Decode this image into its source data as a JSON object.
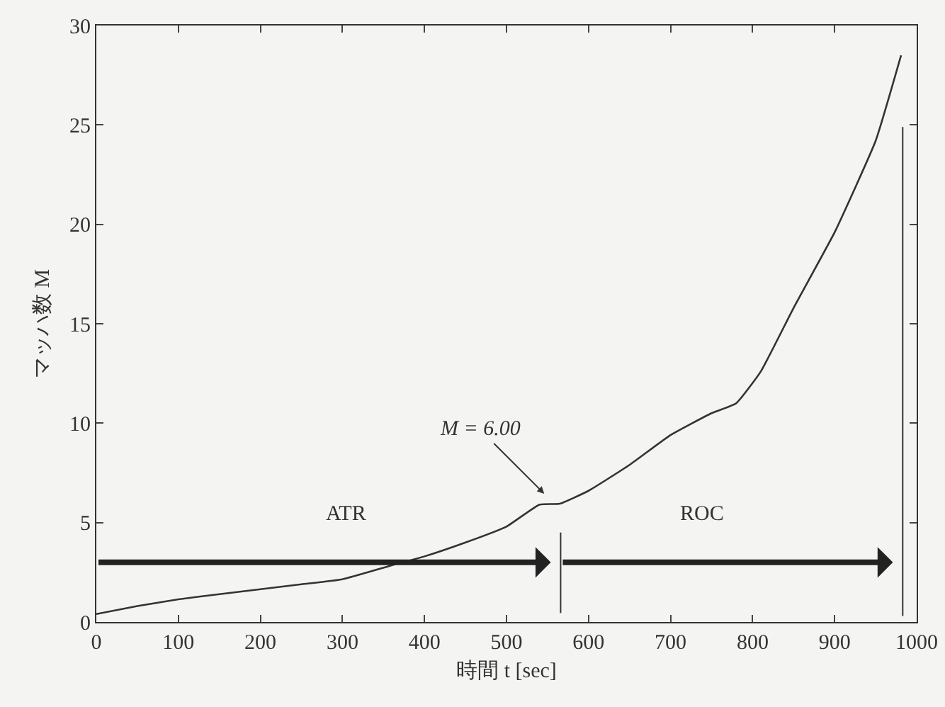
{
  "chart_data": {
    "type": "line",
    "xlabel": "時間 t [sec]",
    "ylabel": "マッハ数 M",
    "x": [
      0,
      50,
      100,
      150,
      200,
      250,
      300,
      360,
      400,
      450,
      500,
      540,
      565,
      600,
      650,
      700,
      750,
      780,
      810,
      850,
      900,
      950,
      981
    ],
    "series": [
      {
        "color": "#333333",
        "values": [
          0.4,
          0.8,
          1.14,
          1.4,
          1.65,
          1.9,
          2.15,
          2.85,
          3.3,
          4.0,
          4.8,
          5.9,
          5.95,
          6.6,
          7.9,
          9.4,
          10.5,
          11.0,
          12.6,
          15.8,
          19.6,
          24.2,
          28.5
        ]
      }
    ],
    "xlim": [
      0,
      1000
    ],
    "ylim": [
      0,
      30
    ],
    "xticks": [
      0,
      100,
      200,
      300,
      400,
      500,
      600,
      700,
      800,
      900,
      1000
    ],
    "yticks": [
      0,
      5,
      10,
      15,
      20,
      25,
      30
    ],
    "ref_lines": [
      {
        "axis": "x",
        "value": 566,
        "color": "#333333"
      },
      {
        "axis": "x",
        "value": 983,
        "color": "#333333"
      }
    ],
    "annotations": [
      "M = 6.00",
      "ATR",
      "ROC"
    ],
    "grid": false,
    "marker": "none",
    "line_style": "solid"
  }
}
